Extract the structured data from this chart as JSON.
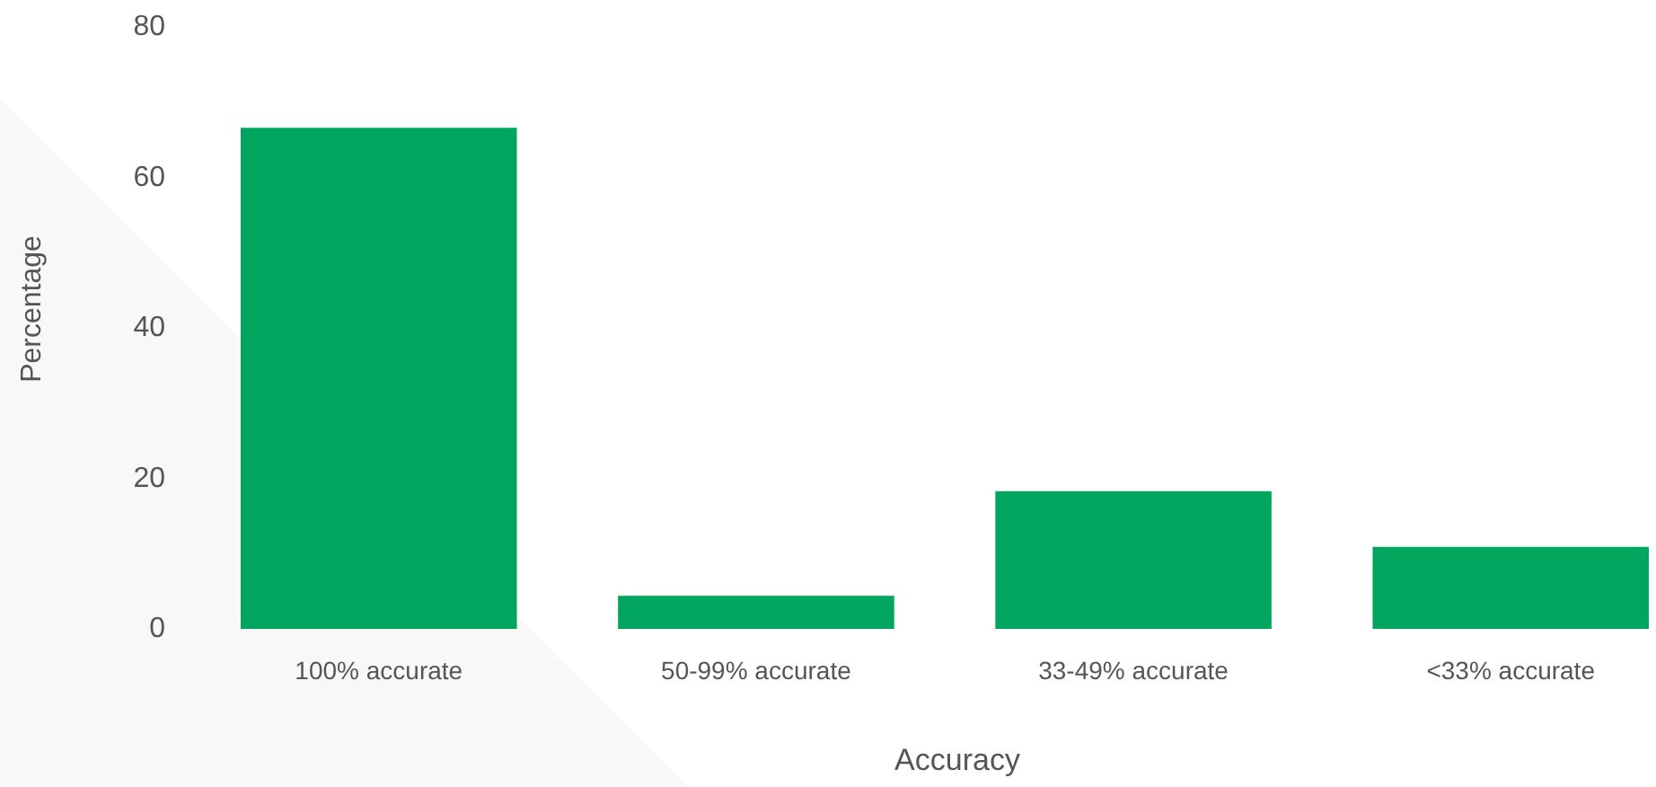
{
  "chart_data": {
    "type": "bar",
    "xlabel": "Accuracy",
    "ylabel": "Percentage",
    "categories": [
      "100% accurate",
      "50-99% accurate",
      "33-49% accurate",
      "<33% accurate"
    ],
    "values": [
      66.6,
      4.4,
      18.3,
      10.9
    ],
    "color": "#00a65d",
    "ylim": [
      0,
      80
    ],
    "yticks": [
      0,
      20,
      40,
      60,
      80
    ]
  }
}
